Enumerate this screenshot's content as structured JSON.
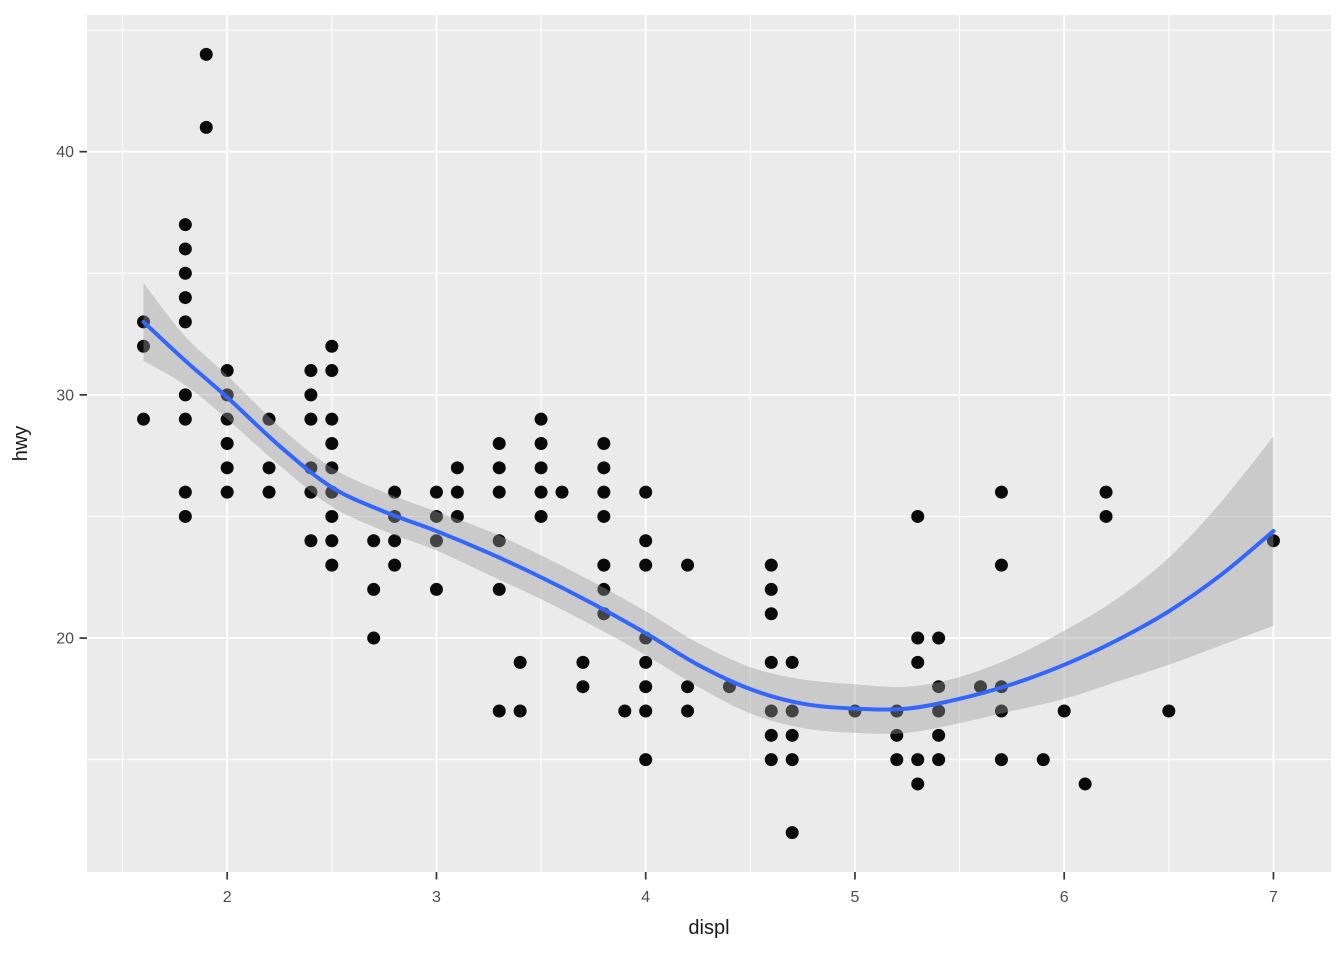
{
  "chart_data": {
    "type": "scatter",
    "title": "",
    "xlabel": "displ",
    "ylabel": "hwy",
    "xlim": [
      1.33,
      7.275
    ],
    "ylim": [
      10.38,
      45.62
    ],
    "x_ticks": [
      2,
      3,
      4,
      5,
      6,
      7
    ],
    "y_ticks": [
      20,
      30,
      40
    ],
    "x_minor_ticks": [
      1.5,
      2.5,
      3.5,
      4.5,
      5.5,
      6.5
    ],
    "y_minor_ticks": [
      15,
      25,
      35,
      45
    ],
    "grid": "major+minor white on gray panel",
    "legend": false,
    "points": [
      [
        1.6,
        33
      ],
      [
        1.6,
        32
      ],
      [
        1.6,
        29
      ],
      [
        1.8,
        37
      ],
      [
        1.8,
        36
      ],
      [
        1.8,
        35
      ],
      [
        1.8,
        34
      ],
      [
        1.8,
        33
      ],
      [
        1.8,
        30
      ],
      [
        1.8,
        29
      ],
      [
        1.8,
        26
      ],
      [
        1.8,
        25
      ],
      [
        1.9,
        44
      ],
      [
        1.9,
        41
      ],
      [
        2.0,
        31
      ],
      [
        2.0,
        30
      ],
      [
        2.0,
        29
      ],
      [
        2.0,
        28
      ],
      [
        2.0,
        27
      ],
      [
        2.0,
        26
      ],
      [
        2.2,
        29
      ],
      [
        2.2,
        27
      ],
      [
        2.2,
        26
      ],
      [
        2.4,
        31
      ],
      [
        2.4,
        30
      ],
      [
        2.4,
        29
      ],
      [
        2.4,
        27
      ],
      [
        2.4,
        26
      ],
      [
        2.4,
        24
      ],
      [
        2.5,
        32
      ],
      [
        2.5,
        31
      ],
      [
        2.5,
        29
      ],
      [
        2.5,
        28
      ],
      [
        2.5,
        27
      ],
      [
        2.5,
        26
      ],
      [
        2.5,
        25
      ],
      [
        2.5,
        24
      ],
      [
        2.5,
        23
      ],
      [
        2.7,
        24
      ],
      [
        2.7,
        22
      ],
      [
        2.7,
        20
      ],
      [
        2.8,
        26
      ],
      [
        2.8,
        25
      ],
      [
        2.8,
        24
      ],
      [
        2.8,
        23
      ],
      [
        3.0,
        26
      ],
      [
        3.0,
        25
      ],
      [
        3.0,
        24
      ],
      [
        3.0,
        22
      ],
      [
        3.1,
        27
      ],
      [
        3.1,
        26
      ],
      [
        3.1,
        25
      ],
      [
        3.3,
        28
      ],
      [
        3.3,
        27
      ],
      [
        3.3,
        26
      ],
      [
        3.3,
        24
      ],
      [
        3.3,
        22
      ],
      [
        3.3,
        17
      ],
      [
        3.4,
        19
      ],
      [
        3.4,
        17
      ],
      [
        3.5,
        29
      ],
      [
        3.5,
        28
      ],
      [
        3.5,
        27
      ],
      [
        3.5,
        26
      ],
      [
        3.5,
        25
      ],
      [
        3.6,
        26
      ],
      [
        3.7,
        19
      ],
      [
        3.7,
        18
      ],
      [
        3.8,
        28
      ],
      [
        3.8,
        27
      ],
      [
        3.8,
        26
      ],
      [
        3.8,
        25
      ],
      [
        3.8,
        23
      ],
      [
        3.8,
        22
      ],
      [
        3.8,
        21
      ],
      [
        3.9,
        17
      ],
      [
        4.0,
        26
      ],
      [
        4.0,
        24
      ],
      [
        4.0,
        23
      ],
      [
        4.0,
        20
      ],
      [
        4.0,
        19
      ],
      [
        4.0,
        18
      ],
      [
        4.0,
        17
      ],
      [
        4.0,
        15
      ],
      [
        4.2,
        23
      ],
      [
        4.2,
        18
      ],
      [
        4.2,
        17
      ],
      [
        4.4,
        18
      ],
      [
        4.6,
        23
      ],
      [
        4.6,
        22
      ],
      [
        4.6,
        21
      ],
      [
        4.6,
        19
      ],
      [
        4.6,
        17
      ],
      [
        4.6,
        16
      ],
      [
        4.6,
        15
      ],
      [
        4.7,
        19
      ],
      [
        4.7,
        17
      ],
      [
        4.7,
        16
      ],
      [
        4.7,
        15
      ],
      [
        4.7,
        12
      ],
      [
        5.0,
        17
      ],
      [
        5.2,
        17
      ],
      [
        5.2,
        16
      ],
      [
        5.2,
        15
      ],
      [
        5.3,
        25
      ],
      [
        5.3,
        20
      ],
      [
        5.3,
        19
      ],
      [
        5.3,
        15
      ],
      [
        5.3,
        14
      ],
      [
        5.4,
        20
      ],
      [
        5.4,
        18
      ],
      [
        5.4,
        17
      ],
      [
        5.4,
        16
      ],
      [
        5.4,
        15
      ],
      [
        5.6,
        18
      ],
      [
        5.7,
        26
      ],
      [
        5.7,
        23
      ],
      [
        5.7,
        18
      ],
      [
        5.7,
        17
      ],
      [
        5.7,
        15
      ],
      [
        5.9,
        15
      ],
      [
        6.0,
        17
      ],
      [
        6.1,
        14
      ],
      [
        6.2,
        26
      ],
      [
        6.2,
        25
      ],
      [
        6.5,
        17
      ],
      [
        7.0,
        24
      ]
    ],
    "smooth": {
      "method_hint": "loess",
      "x": [
        1.6,
        1.8,
        2.0,
        2.25,
        2.5,
        2.75,
        3.0,
        3.25,
        3.5,
        3.75,
        4.0,
        4.25,
        4.5,
        4.75,
        5.0,
        5.25,
        5.5,
        5.75,
        6.0,
        6.25,
        6.5,
        6.75,
        7.0
      ],
      "y": [
        33.0,
        31.4,
        29.9,
        27.9,
        26.2,
        25.2,
        24.4,
        23.5,
        22.5,
        21.4,
        20.2,
        18.9,
        17.9,
        17.3,
        17.1,
        17.1,
        17.5,
        18.1,
        18.9,
        19.9,
        21.1,
        22.6,
        24.4
      ],
      "upper": [
        34.6,
        32.4,
        30.8,
        28.7,
        27.0,
        26.0,
        25.2,
        24.4,
        23.4,
        22.3,
        21.1,
        19.8,
        18.8,
        18.3,
        18.1,
        18.0,
        18.4,
        19.2,
        20.3,
        21.6,
        23.3,
        25.6,
        28.3
      ],
      "lower": [
        31.4,
        30.4,
        29.0,
        27.1,
        25.4,
        24.4,
        23.6,
        22.6,
        21.6,
        20.5,
        19.3,
        18.0,
        16.9,
        16.3,
        16.1,
        16.1,
        16.5,
        17.0,
        17.5,
        18.2,
        18.9,
        19.7,
        20.5
      ]
    },
    "colors": {
      "panel_bg": "#EBEBEB",
      "grid": "#FFFFFF",
      "point": "#0A0A0A",
      "smooth_line": "#3366FF",
      "ribbon": "rgba(153,153,153,0.4)",
      "tick_text": "#4D4D4D",
      "tick_mark": "#333333",
      "axis_title": "#1A1A1A",
      "outer_bg": "#FFFFFF"
    }
  }
}
